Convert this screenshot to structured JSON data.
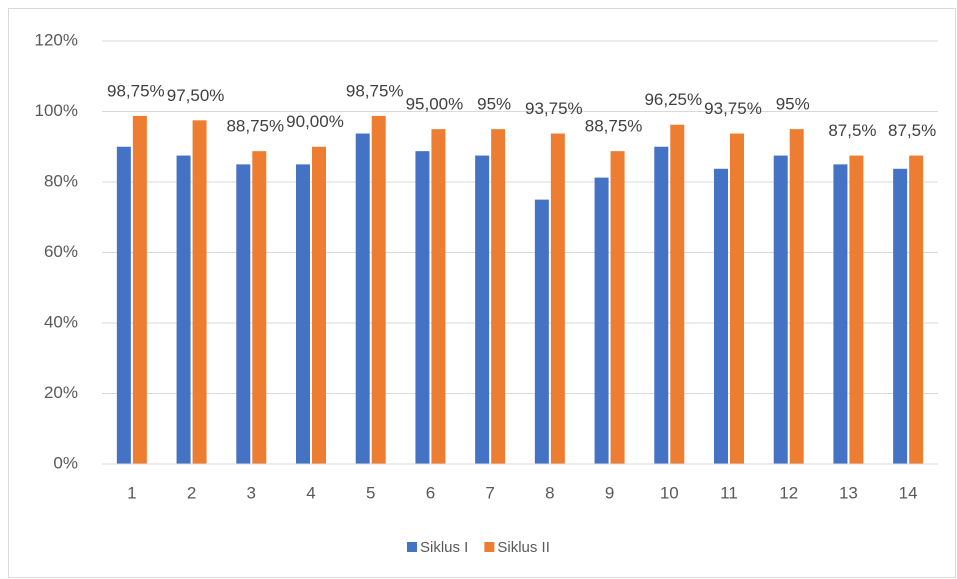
{
  "chart_data": {
    "type": "bar",
    "categories": [
      "1",
      "2",
      "3",
      "4",
      "5",
      "6",
      "7",
      "8",
      "9",
      "10",
      "11",
      "12",
      "13",
      "14"
    ],
    "series": [
      {
        "name": "Siklus I",
        "color": "#4472c4",
        "values": [
          90,
          87.5,
          85,
          85,
          93.75,
          88.75,
          87.5,
          75,
          81.25,
          90,
          83.75,
          87.5,
          85,
          83.75
        ]
      },
      {
        "name": "Siklus II",
        "color": "#ed7d31",
        "values": [
          98.75,
          97.5,
          88.75,
          90,
          98.75,
          95,
          95,
          93.75,
          88.75,
          96.25,
          93.75,
          95,
          87.5,
          87.5
        ],
        "value_labels": [
          "98,75%",
          "97,50%",
          "88,75%",
          "90,00%",
          "98,75%",
          "95,00%",
          "95%",
          "93,75%",
          "88,75%",
          "96,25%",
          "93,75%",
          "95%",
          "87,5%",
          "87,5%"
        ]
      }
    ],
    "ylim": [
      0,
      120
    ],
    "yticks": [
      {
        "value": 0,
        "label": "0%"
      },
      {
        "value": 20,
        "label": "20%"
      },
      {
        "value": 40,
        "label": "40%"
      },
      {
        "value": 60,
        "label": "60%"
      },
      {
        "value": 80,
        "label": "80%"
      },
      {
        "value": 100,
        "label": "100%"
      },
      {
        "value": 120,
        "label": "120%"
      }
    ],
    "grid": true,
    "legend": "bottom"
  }
}
